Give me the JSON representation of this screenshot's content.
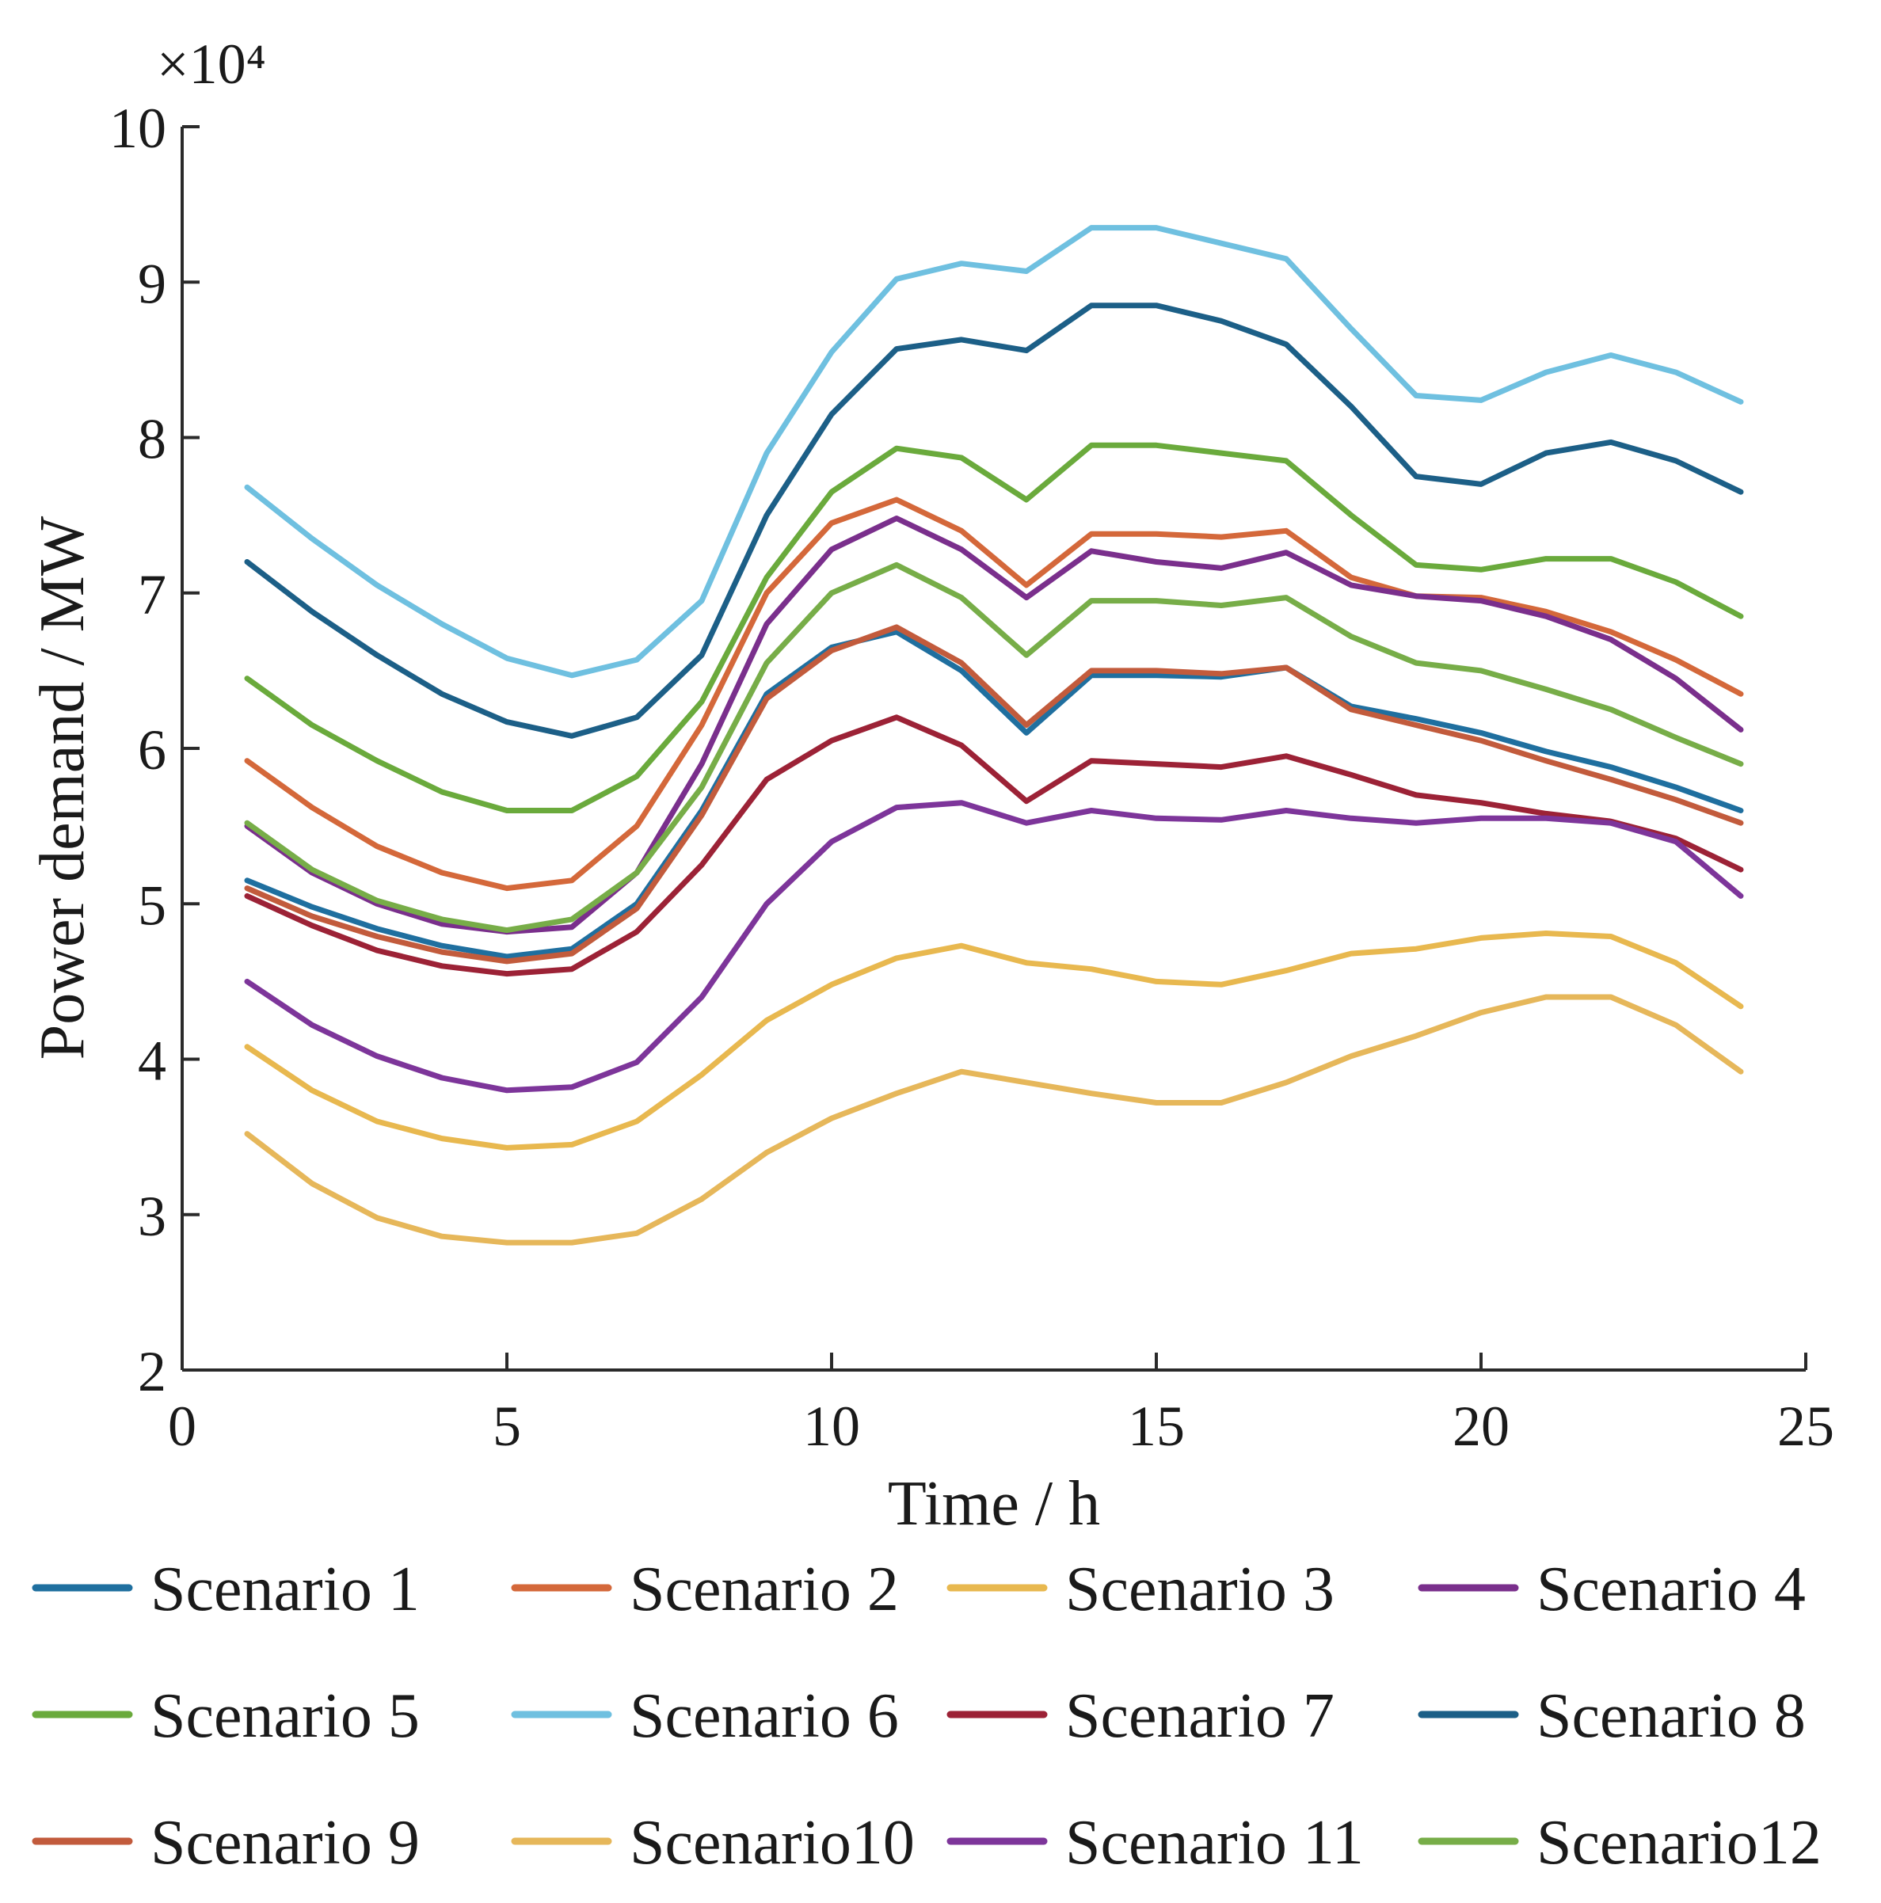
{
  "chart_data": {
    "type": "line",
    "xlabel": "Time / h",
    "ylabel": "Power demand / MW",
    "y_exponent_label": "×10⁴",
    "xlim": [
      0,
      25
    ],
    "ylim": [
      2,
      10
    ],
    "xticks": [
      0,
      5,
      10,
      15,
      20,
      25
    ],
    "yticks": [
      2,
      3,
      4,
      5,
      6,
      7,
      8,
      9,
      10
    ],
    "xtick_labels": [
      "0",
      "5",
      "10",
      "15",
      "20",
      "25"
    ],
    "ytick_labels": [
      "2",
      "3",
      "4",
      "5",
      "6",
      "7",
      "8",
      "9",
      "10"
    ],
    "grid": false,
    "legend_position": "bottom",
    "x": [
      1,
      2,
      3,
      4,
      5,
      6,
      7,
      8,
      9,
      10,
      11,
      12,
      13,
      14,
      15,
      16,
      17,
      18,
      19,
      20,
      21,
      22,
      23,
      24
    ],
    "series": [
      {
        "name": "Scenario 1",
        "color": "#1f6f9f",
        "values": [
          5.15,
          4.98,
          4.84,
          4.73,
          4.66,
          4.71,
          5.0,
          5.6,
          6.35,
          6.65,
          6.75,
          6.5,
          6.1,
          6.47,
          6.47,
          6.46,
          6.52,
          6.27,
          6.19,
          6.1,
          5.98,
          5.88,
          5.75,
          5.6
        ]
      },
      {
        "name": "Scenario 2",
        "color": "#d4683a",
        "values": [
          5.92,
          5.62,
          5.37,
          5.2,
          5.1,
          5.15,
          5.5,
          6.15,
          7.0,
          7.45,
          7.6,
          7.4,
          7.05,
          7.38,
          7.38,
          7.36,
          7.4,
          7.1,
          6.98,
          6.97,
          6.88,
          6.75,
          6.57,
          6.35
        ]
      },
      {
        "name": "Scenario 3",
        "color": "#e8b84f",
        "values": [
          4.08,
          3.8,
          3.6,
          3.49,
          3.43,
          3.45,
          3.6,
          3.9,
          4.25,
          4.48,
          4.65,
          4.73,
          4.62,
          4.58,
          4.5,
          4.48,
          4.57,
          4.68,
          4.71,
          4.78,
          4.81,
          4.79,
          4.62,
          4.34
        ]
      },
      {
        "name": "Scenario 4",
        "color": "#7a2f8c",
        "values": [
          5.5,
          5.2,
          5.0,
          4.87,
          4.82,
          4.85,
          5.2,
          5.9,
          6.8,
          7.28,
          7.48,
          7.28,
          6.97,
          7.27,
          7.2,
          7.16,
          7.26,
          7.05,
          6.98,
          6.95,
          6.85,
          6.7,
          6.45,
          6.12
        ]
      },
      {
        "name": "Scenario 5",
        "color": "#6aaa3c",
        "values": [
          6.45,
          6.15,
          5.92,
          5.72,
          5.6,
          5.6,
          5.82,
          6.3,
          7.1,
          7.65,
          7.93,
          7.87,
          7.6,
          7.95,
          7.95,
          7.9,
          7.85,
          7.5,
          7.18,
          7.15,
          7.22,
          7.22,
          7.07,
          6.85
        ]
      },
      {
        "name": "Scenario 6",
        "color": "#6fc0e0",
        "values": [
          7.68,
          7.35,
          7.05,
          6.8,
          6.58,
          6.47,
          6.57,
          6.95,
          7.9,
          8.55,
          9.02,
          9.12,
          9.07,
          9.35,
          9.35,
          9.25,
          9.15,
          8.7,
          8.27,
          8.24,
          8.42,
          8.53,
          8.42,
          8.23
        ]
      },
      {
        "name": "Scenario 7",
        "color": "#9c2236",
        "values": [
          5.05,
          4.86,
          4.7,
          4.6,
          4.55,
          4.58,
          4.82,
          5.25,
          5.8,
          6.05,
          6.2,
          6.02,
          5.66,
          5.92,
          5.9,
          5.88,
          5.95,
          5.83,
          5.7,
          5.65,
          5.58,
          5.53,
          5.42,
          5.22
        ]
      },
      {
        "name": "Scenario 8",
        "color": "#1c5f87",
        "values": [
          7.2,
          6.88,
          6.6,
          6.35,
          6.17,
          6.08,
          6.2,
          6.6,
          7.5,
          8.15,
          8.57,
          8.63,
          8.56,
          8.85,
          8.85,
          8.75,
          8.6,
          8.2,
          7.75,
          7.7,
          7.9,
          7.97,
          7.85,
          7.65
        ]
      },
      {
        "name": "Scenario 9",
        "color": "#c25b3c",
        "values": [
          5.1,
          4.92,
          4.79,
          4.69,
          4.63,
          4.68,
          4.97,
          5.57,
          6.32,
          6.63,
          6.78,
          6.55,
          6.15,
          6.5,
          6.5,
          6.48,
          6.52,
          6.25,
          6.15,
          6.05,
          5.92,
          5.8,
          5.67,
          5.52
        ]
      },
      {
        "name": "Scenario10",
        "color": "#e6b75a",
        "values": [
          3.52,
          3.2,
          2.98,
          2.86,
          2.82,
          2.82,
          2.88,
          3.1,
          3.4,
          3.62,
          3.78,
          3.92,
          3.85,
          3.78,
          3.72,
          3.72,
          3.85,
          4.02,
          4.15,
          4.3,
          4.4,
          4.4,
          4.22,
          3.92
        ]
      },
      {
        "name": "Scenario 11",
        "color": "#7d359a",
        "values": [
          4.5,
          4.22,
          4.02,
          3.88,
          3.8,
          3.82,
          3.98,
          4.4,
          5.0,
          5.4,
          5.62,
          5.65,
          5.52,
          5.6,
          5.55,
          5.54,
          5.6,
          5.55,
          5.52,
          5.55,
          5.55,
          5.52,
          5.4,
          5.05
        ]
      },
      {
        "name": "Scenario12",
        "color": "#77ad48",
        "values": [
          5.52,
          5.22,
          5.02,
          4.9,
          4.83,
          4.9,
          5.2,
          5.75,
          6.55,
          7.0,
          7.18,
          6.97,
          6.6,
          6.95,
          6.95,
          6.92,
          6.97,
          6.72,
          6.55,
          6.5,
          6.38,
          6.25,
          6.07,
          5.9
        ]
      }
    ]
  }
}
